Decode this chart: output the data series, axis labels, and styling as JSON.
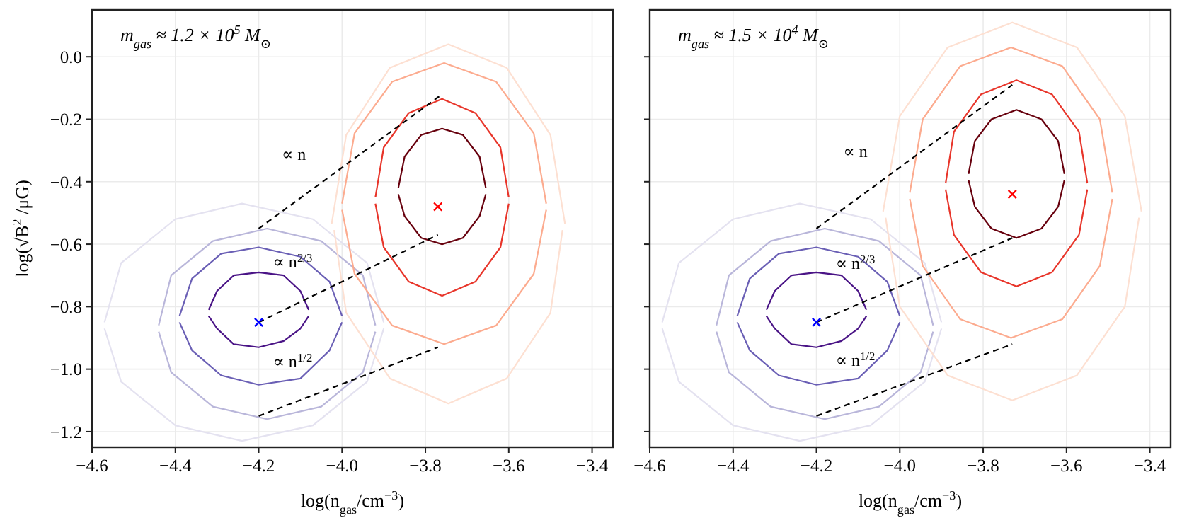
{
  "chart_data": [
    {
      "type": "line",
      "xlabel": "log(n$_{gas}$/cm$^{−3}$)",
      "ylabel": "log(√B$^{2}$ /μG)",
      "xlim": [
        -4.6,
        -3.35
      ],
      "ylim": [
        -1.25,
        0.15
      ],
      "xticks": [
        {
          "value": -4.6,
          "label": "−4.6"
        },
        {
          "value": -4.4,
          "label": "−4.4"
        },
        {
          "value": -4.2,
          "label": "−4.2"
        },
        {
          "value": -4.0,
          "label": "−4.0"
        },
        {
          "value": -3.8,
          "label": "−3.8"
        },
        {
          "value": -3.6,
          "label": "−3.6"
        },
        {
          "value": -3.4,
          "label": "−3.4"
        }
      ],
      "yticks": [
        {
          "value": 0,
          "label": "0.0"
        },
        {
          "value": -0.2,
          "label": "−0.2"
        },
        {
          "value": -0.4,
          "label": "−0.4"
        },
        {
          "value": -0.6,
          "label": "−0.6"
        },
        {
          "value": -0.8,
          "label": "−0.8"
        },
        {
          "value": -1.0,
          "label": "−1.0"
        },
        {
          "value": -1.2,
          "label": "−1.2"
        }
      ],
      "grid": true,
      "annotations": [
        "m$_{gas}$ ≈ 1.2 × 10$^{5}$ M$_{⊙}$",
        "∝ n",
        "∝ n$^{2/3}$",
        "∝ n$^{1/2}$"
      ],
      "series": [
        {
          "color": "#e4e2f0",
          "x": [
            -4.57,
            -4.53,
            -4.4,
            -4.24,
            -4.07,
            -3.94,
            -3.9
          ],
          "values": [
            -0.85,
            -0.66,
            -0.52,
            -0.47,
            -0.52,
            -0.66,
            -0.85
          ]
        },
        {
          "color": "#e4e2f0",
          "x": [
            -4.57,
            -4.53,
            -4.4,
            -4.24,
            -4.07,
            -3.94,
            -3.9
          ],
          "values": [
            -0.87,
            -1.04,
            -1.18,
            -1.23,
            -1.18,
            -1.04,
            -0.87
          ]
        },
        {
          "color": "#b9b6da",
          "x": [
            -4.44,
            -4.41,
            -4.31,
            -4.18,
            -4.05,
            -3.95,
            -3.92
          ],
          "values": [
            -0.86,
            -0.7,
            -0.59,
            -0.55,
            -0.59,
            -0.7,
            -0.86
          ]
        },
        {
          "color": "#b9b6da",
          "x": [
            -4.44,
            -4.41,
            -4.31,
            -4.18,
            -4.05,
            -3.95,
            -3.92
          ],
          "values": [
            -0.88,
            -1.01,
            -1.12,
            -1.16,
            -1.12,
            -1.01,
            -0.88
          ]
        },
        {
          "color": "#6a5fb5",
          "x": [
            -4.39,
            -4.36,
            -4.29,
            -4.2,
            -4.1,
            -4.03,
            -4.0
          ],
          "values": [
            -0.83,
            -0.71,
            -0.63,
            -0.61,
            -0.64,
            -0.72,
            -0.83
          ]
        },
        {
          "color": "#6a5fb5",
          "x": [
            -4.39,
            -4.36,
            -4.29,
            -4.2,
            -4.1,
            -4.03,
            -4.0
          ],
          "values": [
            -0.85,
            -0.94,
            -1.02,
            -1.05,
            -1.03,
            -0.94,
            -0.85
          ]
        },
        {
          "color": "#4a1486",
          "x": [
            -4.32,
            -4.3,
            -4.26,
            -4.2,
            -4.14,
            -4.1,
            -4.08
          ],
          "values": [
            -0.81,
            -0.75,
            -0.7,
            -0.69,
            -0.7,
            -0.75,
            -0.81
          ]
        },
        {
          "color": "#4a1486",
          "x": [
            -4.32,
            -4.3,
            -4.26,
            -4.2,
            -4.14,
            -4.1,
            -4.08
          ],
          "values": [
            -0.83,
            -0.87,
            -0.92,
            -0.93,
            -0.91,
            -0.87,
            -0.83
          ]
        },
        {
          "color": "#fde0d2",
          "x": [
            -4.025,
            -3.99,
            -3.885,
            -3.745,
            -3.605,
            -3.5,
            -3.465
          ],
          "values": [
            -0.535,
            -0.25,
            -0.035,
            0.04,
            -0.035,
            -0.25,
            -0.535
          ]
        },
        {
          "color": "#fde0d2",
          "x": [
            -4.019,
            -3.99,
            -3.885,
            -3.745,
            -3.605,
            -3.5,
            -3.471
          ],
          "values": [
            -0.555,
            -0.82,
            -1.03,
            -1.11,
            -1.03,
            -0.82,
            -0.555
          ]
        },
        {
          "color": "#fcab8f",
          "x": [
            -4.0,
            -3.97,
            -3.88,
            -3.755,
            -3.63,
            -3.54,
            -3.51
          ],
          "values": [
            -0.47,
            -0.245,
            -0.08,
            -0.02,
            -0.08,
            -0.245,
            -0.47
          ]
        },
        {
          "color": "#fcab8f",
          "x": [
            -4.0,
            -3.97,
            -3.88,
            -3.755,
            -3.63,
            -3.54,
            -3.51
          ],
          "values": [
            -0.49,
            -0.695,
            -0.86,
            -0.92,
            -0.86,
            -0.695,
            -0.49
          ]
        },
        {
          "color": "#e8352a",
          "x": [
            -3.92,
            -3.9,
            -3.84,
            -3.76,
            -3.68,
            -3.62,
            -3.6
          ],
          "values": [
            -0.45,
            -0.29,
            -0.18,
            -0.135,
            -0.18,
            -0.29,
            -0.45
          ]
        },
        {
          "color": "#e8352a",
          "x": [
            -3.92,
            -3.9,
            -3.84,
            -3.76,
            -3.68,
            -3.62,
            -3.6
          ],
          "values": [
            -0.47,
            -0.61,
            -0.72,
            -0.765,
            -0.72,
            -0.61,
            -0.47
          ]
        },
        {
          "color": "#67000d",
          "x": [
            -3.865,
            -3.85,
            -3.81,
            -3.76,
            -3.71,
            -3.67,
            -3.655
          ],
          "values": [
            -0.42,
            -0.32,
            -0.25,
            -0.23,
            -0.25,
            -0.32,
            -0.42
          ]
        },
        {
          "color": "#67000d",
          "x": [
            -3.865,
            -3.85,
            -3.81,
            -3.76,
            -3.71,
            -3.67,
            -3.655
          ],
          "values": [
            -0.44,
            -0.51,
            -0.58,
            -0.6,
            -0.58,
            -0.51,
            -0.44
          ]
        },
        {
          "color": "#000000",
          "line_style": "dashed",
          "x": [
            -4.2,
            -3.76
          ],
          "values": [
            -0.55,
            -0.12
          ]
        },
        {
          "color": "#000000",
          "line_style": "dashed",
          "x": [
            -4.2,
            -3.77
          ],
          "values": [
            -0.85,
            -0.57
          ]
        },
        {
          "color": "#000000",
          "line_style": "dashed",
          "x": [
            -4.2,
            -3.77
          ],
          "values": [
            -1.15,
            -0.93
          ]
        },
        {
          "type": "scatter",
          "color": "#0000ff",
          "marker": "cross",
          "x": [
            -4.2
          ],
          "values": [
            -0.85
          ]
        },
        {
          "type": "scatter",
          "color": "#ff0000",
          "marker": "cross",
          "x": [
            -3.77
          ],
          "values": [
            -0.48
          ]
        }
      ]
    },
    {
      "type": "line",
      "xlabel": "log(n$_{gas}$/cm$^{−3}$)",
      "xlim": [
        -4.6,
        -3.35
      ],
      "ylim": [
        -1.25,
        0.15
      ],
      "tick_labels": "x",
      "xticks": [
        {
          "value": -4.6,
          "label": "−4.6"
        },
        {
          "value": -4.4,
          "label": "−4.4"
        },
        {
          "value": -4.2,
          "label": "−4.2"
        },
        {
          "value": -4.0,
          "label": "−4.0"
        },
        {
          "value": -3.8,
          "label": "−3.8"
        },
        {
          "value": -3.6,
          "label": "−3.6"
        },
        {
          "value": -3.4,
          "label": "−3.4"
        }
      ],
      "yticks": [
        0,
        -0.2,
        -0.4,
        -0.6,
        -0.8,
        -1.0,
        -1.2
      ],
      "grid": true,
      "annotations": [
        "m$_{gas}$ ≈ 1.5 × 10$^{4}$ M$_{⊙}$",
        "∝ n",
        "∝ n$^{2/3}$",
        "∝ n$^{1/2}$"
      ],
      "series": [
        {
          "color": "#e4e2f0",
          "x": [
            -4.57,
            -4.53,
            -4.4,
            -4.24,
            -4.07,
            -3.94,
            -3.9
          ],
          "values": [
            -0.85,
            -0.66,
            -0.52,
            -0.47,
            -0.52,
            -0.66,
            -0.85
          ]
        },
        {
          "color": "#e4e2f0",
          "x": [
            -4.57,
            -4.53,
            -4.4,
            -4.24,
            -4.07,
            -3.94,
            -3.9
          ],
          "values": [
            -0.87,
            -1.04,
            -1.18,
            -1.23,
            -1.18,
            -1.04,
            -0.87
          ]
        },
        {
          "color": "#b9b6da",
          "x": [
            -4.44,
            -4.41,
            -4.31,
            -4.18,
            -4.05,
            -3.95,
            -3.92
          ],
          "values": [
            -0.86,
            -0.7,
            -0.59,
            -0.55,
            -0.59,
            -0.7,
            -0.86
          ]
        },
        {
          "color": "#b9b6da",
          "x": [
            -4.44,
            -4.41,
            -4.31,
            -4.18,
            -4.05,
            -3.95,
            -3.92
          ],
          "values": [
            -0.88,
            -1.01,
            -1.12,
            -1.16,
            -1.12,
            -1.01,
            -0.88
          ]
        },
        {
          "color": "#6a5fb5",
          "x": [
            -4.39,
            -4.36,
            -4.29,
            -4.2,
            -4.1,
            -4.03,
            -4.0
          ],
          "values": [
            -0.83,
            -0.71,
            -0.63,
            -0.61,
            -0.64,
            -0.72,
            -0.83
          ]
        },
        {
          "color": "#6a5fb5",
          "x": [
            -4.39,
            -4.36,
            -4.29,
            -4.2,
            -4.1,
            -4.03,
            -4.0
          ],
          "values": [
            -0.85,
            -0.94,
            -1.02,
            -1.05,
            -1.03,
            -0.94,
            -0.85
          ]
        },
        {
          "color": "#4a1486",
          "x": [
            -4.32,
            -4.3,
            -4.26,
            -4.2,
            -4.14,
            -4.1,
            -4.08
          ],
          "values": [
            -0.81,
            -0.75,
            -0.7,
            -0.69,
            -0.7,
            -0.75,
            -0.81
          ]
        },
        {
          "color": "#4a1486",
          "x": [
            -4.32,
            -4.3,
            -4.26,
            -4.2,
            -4.14,
            -4.1,
            -4.08
          ],
          "values": [
            -0.83,
            -0.87,
            -0.92,
            -0.93,
            -0.91,
            -0.87,
            -0.83
          ]
        },
        {
          "color": "#fde0d2",
          "x": [
            -4.04,
            -4.0,
            -3.885,
            -3.73,
            -3.575,
            -3.46,
            -3.42
          ],
          "values": [
            -0.495,
            -0.19,
            0.03,
            0.11,
            0.03,
            -0.19,
            -0.495
          ]
        },
        {
          "color": "#fde0d2",
          "x": [
            -4.034,
            -4.0,
            -3.885,
            -3.73,
            -3.575,
            -3.46,
            -3.426
          ],
          "values": [
            -0.515,
            -0.8,
            -1.02,
            -1.1,
            -1.02,
            -0.8,
            -0.515
          ]
        },
        {
          "color": "#fcab8f",
          "x": [
            -3.976,
            -3.945,
            -3.855,
            -3.733,
            -3.61,
            -3.52,
            -3.49
          ],
          "values": [
            -0.435,
            -0.2,
            -0.03,
            0.03,
            -0.03,
            -0.2,
            -0.435
          ]
        },
        {
          "color": "#fcab8f",
          "x": [
            -3.976,
            -3.945,
            -3.855,
            -3.733,
            -3.61,
            -3.52,
            -3.49
          ],
          "values": [
            -0.455,
            -0.67,
            -0.84,
            -0.9,
            -0.84,
            -0.67,
            -0.455
          ]
        },
        {
          "color": "#e8352a",
          "x": [
            -3.89,
            -3.87,
            -3.805,
            -3.72,
            -3.635,
            -3.57,
            -3.55
          ],
          "values": [
            -0.405,
            -0.24,
            -0.12,
            -0.075,
            -0.12,
            -0.24,
            -0.405
          ]
        },
        {
          "color": "#e8352a",
          "x": [
            -3.89,
            -3.87,
            -3.805,
            -3.72,
            -3.635,
            -3.57,
            -3.55
          ],
          "values": [
            -0.425,
            -0.57,
            -0.69,
            -0.735,
            -0.69,
            -0.57,
            -0.425
          ]
        },
        {
          "color": "#67000d",
          "x": [
            -3.835,
            -3.82,
            -3.78,
            -3.72,
            -3.66,
            -3.62,
            -3.605
          ],
          "values": [
            -0.375,
            -0.27,
            -0.2,
            -0.17,
            -0.2,
            -0.27,
            -0.375
          ]
        },
        {
          "color": "#67000d",
          "x": [
            -3.835,
            -3.82,
            -3.78,
            -3.72,
            -3.66,
            -3.62,
            -3.605
          ],
          "values": [
            -0.395,
            -0.48,
            -0.55,
            -0.58,
            -0.55,
            -0.48,
            -0.395
          ]
        },
        {
          "color": "#000000",
          "line_style": "dashed",
          "x": [
            -4.2,
            -3.73
          ],
          "values": [
            -0.55,
            -0.09
          ]
        },
        {
          "color": "#000000",
          "line_style": "dashed",
          "x": [
            -4.2,
            -3.73
          ],
          "values": [
            -0.85,
            -0.58
          ]
        },
        {
          "color": "#000000",
          "line_style": "dashed",
          "x": [
            -4.2,
            -3.73
          ],
          "values": [
            -1.15,
            -0.92
          ]
        },
        {
          "type": "scatter",
          "color": "#0000ff",
          "marker": "cross",
          "x": [
            -4.2
          ],
          "values": [
            -0.85
          ]
        },
        {
          "type": "scatter",
          "color": "#ff0000",
          "marker": "cross",
          "x": [
            -3.73
          ],
          "values": [
            -0.44
          ]
        }
      ]
    }
  ]
}
